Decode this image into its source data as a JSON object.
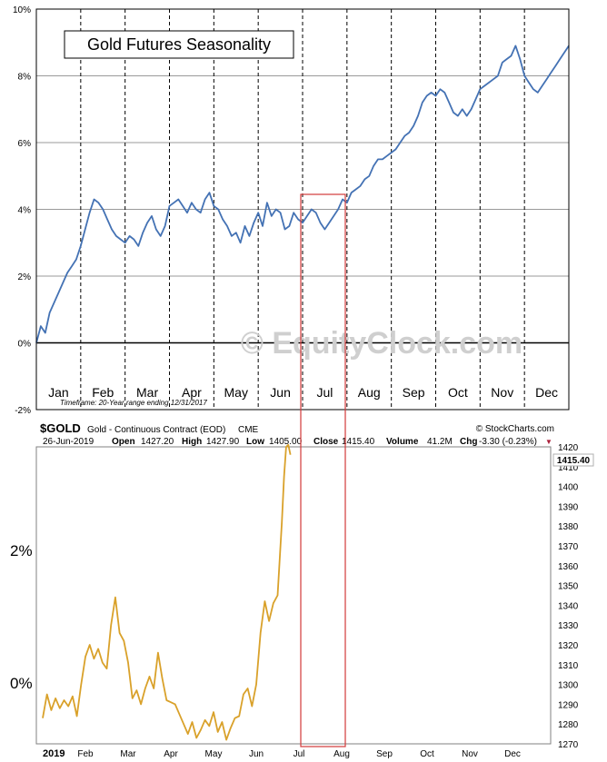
{
  "chart_data": [
    {
      "type": "line",
      "title": "Gold Futures Seasonality",
      "subtitle": "Timeframe:  20-Year range ending 12/31/2017",
      "watermark": "© EquityClock.com",
      "xlabel": "",
      "ylabel": "",
      "ylim": [
        -2,
        10
      ],
      "y_ticks": [
        "10%",
        "8%",
        "6%",
        "4%",
        "2%",
        "0%",
        "-2%"
      ],
      "y_tick_values": [
        10,
        8,
        6,
        4,
        2,
        0,
        -2
      ],
      "categories": [
        "Jan",
        "Feb",
        "Mar",
        "Apr",
        "May",
        "Jun",
        "Jul",
        "Aug",
        "Sep",
        "Oct",
        "Nov",
        "Dec"
      ],
      "grid": true,
      "x_unit": "month index (0 = Jan 1, 12 = Dec 31)",
      "series": [
        {
          "color": "#4472b4",
          "x": [
            0.0,
            0.1,
            0.2,
            0.3,
            0.4,
            0.5,
            0.6,
            0.7,
            0.8,
            0.9,
            1.0,
            1.1,
            1.2,
            1.3,
            1.4,
            1.5,
            1.6,
            1.7,
            1.8,
            1.9,
            2.0,
            2.1,
            2.2,
            2.3,
            2.4,
            2.5,
            2.6,
            2.7,
            2.8,
            2.9,
            3.0,
            3.1,
            3.2,
            3.3,
            3.4,
            3.5,
            3.6,
            3.7,
            3.8,
            3.9,
            4.0,
            4.1,
            4.2,
            4.3,
            4.4,
            4.5,
            4.6,
            4.7,
            4.8,
            4.9,
            5.0,
            5.1,
            5.2,
            5.3,
            5.4,
            5.5,
            5.6,
            5.7,
            5.8,
            5.9,
            6.0,
            6.1,
            6.2,
            6.3,
            6.4,
            6.5,
            6.6,
            6.7,
            6.8,
            6.9,
            7.0,
            7.1,
            7.2,
            7.3,
            7.4,
            7.5,
            7.6,
            7.7,
            7.8,
            7.9,
            8.0,
            8.1,
            8.2,
            8.3,
            8.4,
            8.5,
            8.6,
            8.7,
            8.8,
            8.9,
            9.0,
            9.1,
            9.2,
            9.3,
            9.4,
            9.5,
            9.6,
            9.7,
            9.8,
            9.9,
            10.0,
            10.1,
            10.2,
            10.3,
            10.4,
            10.5,
            10.6,
            10.7,
            10.8,
            10.9,
            11.0,
            11.1,
            11.2,
            11.3,
            11.4,
            11.5,
            11.6,
            11.7,
            11.8,
            11.9,
            12.0
          ],
          "values": [
            0.0,
            0.5,
            0.3,
            0.9,
            1.2,
            1.5,
            1.8,
            2.1,
            2.3,
            2.5,
            2.9,
            3.4,
            3.9,
            4.3,
            4.2,
            4.0,
            3.7,
            3.4,
            3.2,
            3.1,
            3.0,
            3.2,
            3.1,
            2.9,
            3.3,
            3.6,
            3.8,
            3.4,
            3.2,
            3.5,
            4.1,
            4.2,
            4.3,
            4.1,
            3.9,
            4.2,
            4.0,
            3.9,
            4.3,
            4.5,
            4.1,
            4.0,
            3.7,
            3.5,
            3.2,
            3.3,
            3.0,
            3.5,
            3.2,
            3.6,
            3.9,
            3.5,
            4.2,
            3.8,
            4.0,
            3.9,
            3.4,
            3.5,
            3.9,
            3.7,
            3.6,
            3.8,
            4.0,
            3.9,
            3.6,
            3.4,
            3.6,
            3.8,
            4.0,
            4.3,
            4.2,
            4.5,
            4.6,
            4.7,
            4.9,
            5.0,
            5.3,
            5.5,
            5.5,
            5.6,
            5.7,
            5.8,
            6.0,
            6.2,
            6.3,
            6.5,
            6.8,
            7.2,
            7.4,
            7.5,
            7.4,
            7.6,
            7.5,
            7.2,
            6.9,
            6.8,
            7.0,
            6.8,
            7.0,
            7.3,
            7.6,
            7.7,
            7.8,
            7.9,
            8.0,
            8.4,
            8.5,
            8.6,
            8.9,
            8.5,
            8.0,
            7.8,
            7.6,
            7.5,
            7.7,
            7.9,
            8.1,
            8.3,
            8.5,
            8.7,
            8.9
          ]
        }
      ]
    },
    {
      "type": "line",
      "title": "$GOLD Gold - Continuous Contract (EOD) CME",
      "symbol": "$GOLD",
      "description": "Gold - Continuous Contract (EOD)",
      "exchange": "CME",
      "source": "© StockCharts.com",
      "info": {
        "date": "26-Jun-2019",
        "open": "1427.20",
        "high": "1427.90",
        "low": "1405.00",
        "close": "1415.40",
        "volume": "41.2M",
        "chg": "-3.30 (-0.23%)",
        "triangle": "▼"
      },
      "open_label": "Open",
      "high_label": "High",
      "low_label": "Low",
      "close_label": "Close",
      "volume_label": "Volume",
      "chg_label": "Chg",
      "last_value_label": "1415.40",
      "left_labels": [
        "2%",
        "0%"
      ],
      "ylim": [
        1270,
        1420
      ],
      "y_ticks": [
        "1420",
        "1410",
        "1400",
        "1390",
        "1380",
        "1370",
        "1360",
        "1350",
        "1340",
        "1330",
        "1320",
        "1310",
        "1300",
        "1290",
        "1280",
        "1270"
      ],
      "y_tick_values": [
        1420,
        1410,
        1400,
        1390,
        1380,
        1370,
        1360,
        1350,
        1340,
        1330,
        1320,
        1310,
        1300,
        1290,
        1280,
        1270
      ],
      "x_ticks": [
        "2019",
        "Feb",
        "Mar",
        "Apr",
        "May",
        "Jun",
        "Jul",
        "Aug",
        "Sep",
        "Oct",
        "Nov",
        "Dec"
      ],
      "x_unit": "months since Jan 1, 2019",
      "series": [
        {
          "color": "#d9a12a",
          "x": [
            0.0,
            0.1,
            0.2,
            0.3,
            0.4,
            0.5,
            0.6,
            0.7,
            0.8,
            0.9,
            1.0,
            1.1,
            1.2,
            1.3,
            1.4,
            1.5,
            1.6,
            1.7,
            1.8,
            1.9,
            2.0,
            2.1,
            2.2,
            2.3,
            2.4,
            2.5,
            2.6,
            2.7,
            2.8,
            2.9,
            3.0,
            3.1,
            3.2,
            3.3,
            3.4,
            3.5,
            3.6,
            3.7,
            3.8,
            3.9,
            4.0,
            4.1,
            4.2,
            4.3,
            4.4,
            4.5,
            4.6,
            4.7,
            4.8,
            4.9,
            5.0,
            5.1,
            5.2,
            5.3,
            5.4,
            5.5,
            5.6,
            5.65,
            5.7,
            5.75,
            5.8
          ],
          "values": [
            1283,
            1295,
            1287,
            1293,
            1288,
            1292,
            1289,
            1294,
            1284,
            1300,
            1314,
            1320,
            1313,
            1318,
            1311,
            1308,
            1330,
            1344,
            1326,
            1322,
            1311,
            1293,
            1297,
            1290,
            1298,
            1304,
            1298,
            1316,
            1303,
            1292,
            1291,
            1290,
            1285,
            1280,
            1275,
            1281,
            1273,
            1277,
            1282,
            1279,
            1286,
            1276,
            1281,
            1272,
            1278,
            1283,
            1284,
            1295,
            1298,
            1289,
            1300,
            1326,
            1342,
            1332,
            1341,
            1345,
            1382,
            1405,
            1420,
            1421,
            1416
          ]
        }
      ]
    }
  ]
}
